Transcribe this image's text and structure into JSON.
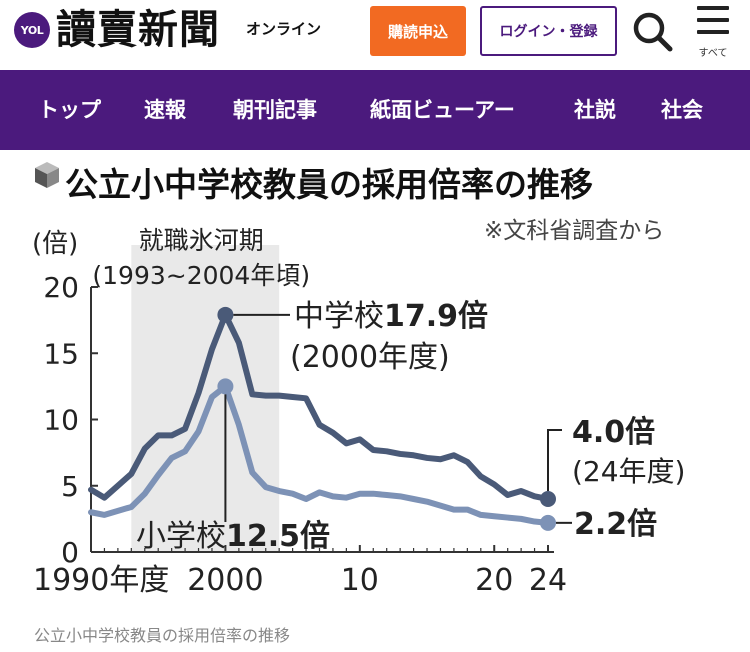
{
  "header": {
    "badge": "YOL",
    "logo": "讀賣新聞",
    "logo_suffix": "オンライン",
    "subscribe_label": "購読申込",
    "login_label": "ログイン・登録",
    "menu_label": "すべて",
    "accent": "#4b1a7d",
    "subscribe_color": "#f26a22",
    "search_icon": "search-icon",
    "menu_icon": "hamburger-menu-icon"
  },
  "nav": {
    "items": [
      "トップ",
      "速報",
      "朝刊記事",
      "紙面ビューアー",
      "社説",
      "社会"
    ]
  },
  "chart_data": {
    "type": "line",
    "title": "公立小中学校教員の採用倍率の推移",
    "source": "※文科省調査から",
    "ylabel": "(倍)",
    "ylim": [
      0,
      20
    ],
    "yticks": [
      0,
      5,
      10,
      15,
      20
    ],
    "xlim": [
      1990,
      2024
    ],
    "xtick_labels": [
      {
        "x": 1990,
        "label": "1990年度"
      },
      {
        "x": 2000,
        "label": "2000"
      },
      {
        "x": 2010,
        "label": "10"
      },
      {
        "x": 2020,
        "label": "20"
      },
      {
        "x": 2024,
        "label": "24"
      }
    ],
    "shaded_region": {
      "from": 1993,
      "to": 2004,
      "label": "就職氷河期",
      "sublabel": "(1993~2004年頃)"
    },
    "series": [
      {
        "name": "中学校",
        "color": "#4a5a78",
        "x": [
          1990,
          1991,
          1992,
          1993,
          1994,
          1995,
          1996,
          1997,
          1998,
          1999,
          2000,
          2001,
          2002,
          2003,
          2004,
          2005,
          2006,
          2007,
          2008,
          2009,
          2010,
          2011,
          2012,
          2013,
          2014,
          2015,
          2016,
          2017,
          2018,
          2019,
          2020,
          2021,
          2022,
          2023,
          2024
        ],
        "values": [
          4.7,
          4.1,
          5.0,
          5.9,
          7.8,
          8.8,
          8.8,
          9.3,
          12.0,
          15.3,
          17.9,
          15.8,
          11.9,
          11.8,
          11.8,
          11.7,
          11.6,
          9.6,
          9.0,
          8.2,
          8.5,
          7.7,
          7.6,
          7.4,
          7.3,
          7.1,
          7.0,
          7.3,
          6.8,
          5.7,
          5.1,
          4.3,
          4.6,
          4.2,
          4.0
        ]
      },
      {
        "name": "小学校",
        "color": "#7d92b6",
        "x": [
          1990,
          1991,
          1992,
          1993,
          1994,
          1995,
          1996,
          1997,
          1998,
          1999,
          2000,
          2001,
          2002,
          2003,
          2004,
          2005,
          2006,
          2007,
          2008,
          2009,
          2010,
          2011,
          2012,
          2013,
          2014,
          2015,
          2016,
          2017,
          2018,
          2019,
          2020,
          2021,
          2022,
          2023,
          2024
        ],
        "values": [
          3.0,
          2.8,
          3.1,
          3.4,
          4.4,
          5.8,
          7.1,
          7.6,
          9.1,
          11.7,
          12.5,
          9.6,
          6.0,
          4.9,
          4.6,
          4.4,
          4.0,
          4.5,
          4.2,
          4.1,
          4.4,
          4.4,
          4.3,
          4.2,
          4.0,
          3.8,
          3.5,
          3.2,
          3.2,
          2.8,
          2.7,
          2.6,
          2.5,
          2.3,
          2.2
        ]
      }
    ],
    "annotations": {
      "middle_peak": {
        "school": "中学校",
        "value": "17.9倍",
        "period": "(2000年度)"
      },
      "middle_end": {
        "value": "4.0倍",
        "period": "(24年度)"
      },
      "elementary_peak": {
        "school": "小学校",
        "value": "12.5倍"
      },
      "elementary_end": {
        "value": "2.2倍"
      }
    },
    "grid": false,
    "legend": "none"
  },
  "caption": "公立小中学校教員の採用倍率の推移"
}
